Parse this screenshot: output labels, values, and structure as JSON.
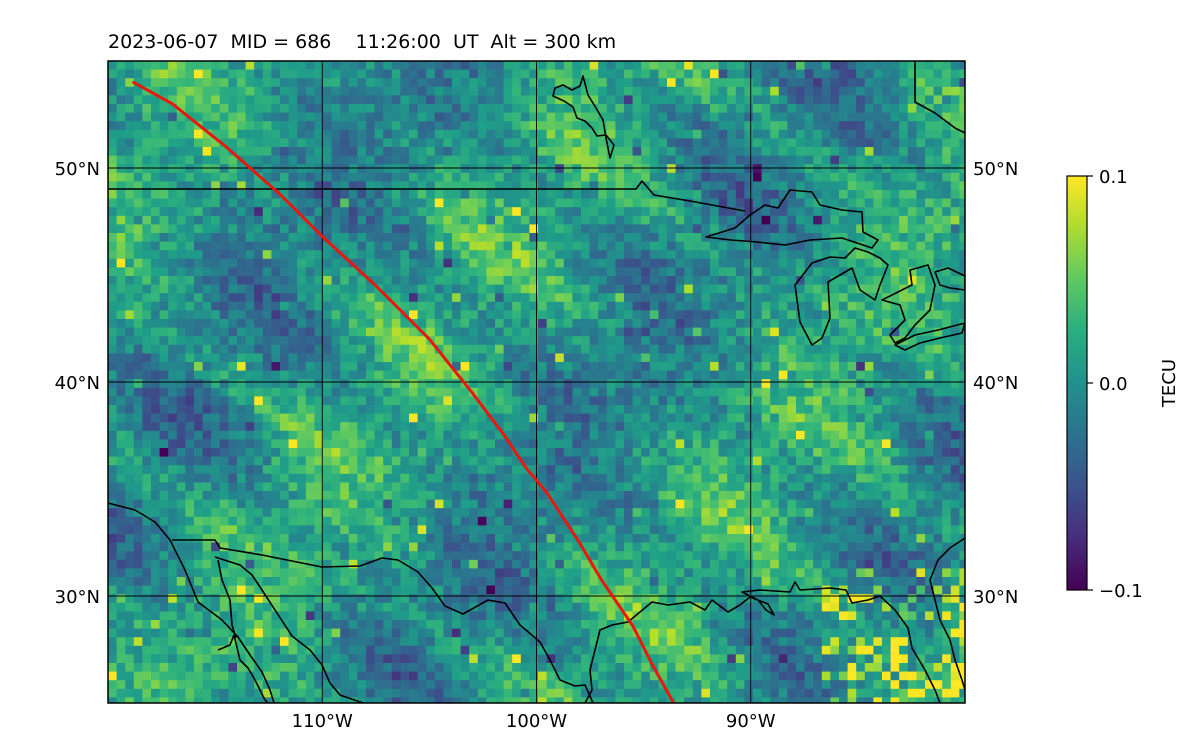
{
  "title": "2023-06-07  MID = 686    11:26:00  UT  Alt = 300 km",
  "map": {
    "lon_range": [
      -120,
      -80
    ],
    "lat_range": [
      25,
      55
    ],
    "value_range": [
      -0.1,
      0.1
    ],
    "colormap": "viridis",
    "grid_color": "#000000",
    "coastline_color": "#000000",
    "track_color": "#e8180c",
    "lat_ticks": [
      {
        "value": 50,
        "label": "50°N"
      },
      {
        "value": 40,
        "label": "40°N"
      },
      {
        "value": 30,
        "label": "30°N"
      }
    ],
    "lon_ticks": [
      {
        "value": -110,
        "label": "110°W"
      },
      {
        "value": -100,
        "label": "100°W"
      },
      {
        "value": -90,
        "label": "90°W"
      }
    ],
    "track": [
      [
        -118.8,
        54.0
      ],
      [
        -117.0,
        53.0
      ],
      [
        -114.5,
        51.0
      ],
      [
        -112.0,
        48.8
      ],
      [
        -110.0,
        46.8
      ],
      [
        -107.5,
        44.5
      ],
      [
        -105.0,
        42.0
      ],
      [
        -103.0,
        39.5
      ],
      [
        -101.5,
        37.5
      ],
      [
        -100.5,
        36.0
      ],
      [
        -99.5,
        34.8
      ],
      [
        -98.0,
        32.5
      ],
      [
        -97.0,
        30.8
      ],
      [
        -95.5,
        28.6
      ],
      [
        -94.6,
        26.8
      ],
      [
        -93.6,
        25.0
      ]
    ]
  },
  "colorbar": {
    "label": "TECU",
    "ticks": [
      {
        "value": 0.1,
        "label": "0.1"
      },
      {
        "value": 0.0,
        "label": "0.0"
      },
      {
        "value": -0.1,
        "label": "−0.1"
      }
    ]
  }
}
